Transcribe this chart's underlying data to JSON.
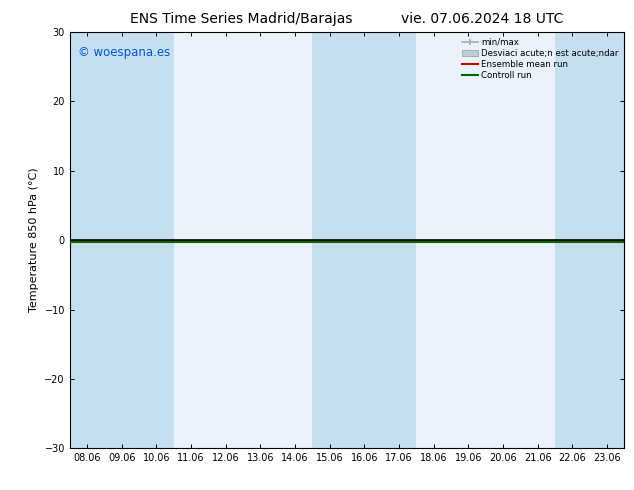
{
  "title": "ENS Time Series Madrid/Barajas",
  "title_right": "vie. 07.06.2024 18 UTC",
  "ylabel": "Temperature 850 hPa (°C)",
  "ylim": [
    -30,
    30
  ],
  "yticks": [
    -30,
    -20,
    -10,
    0,
    10,
    20,
    30
  ],
  "x_labels": [
    "08.06",
    "09.06",
    "10.06",
    "11.06",
    "12.06",
    "13.06",
    "14.06",
    "15.06",
    "16.06",
    "17.06",
    "18.06",
    "19.06",
    "20.06",
    "21.06",
    "22.06",
    "23.06"
  ],
  "shaded_indices": [
    0,
    1,
    2,
    7,
    8,
    9,
    14,
    15
  ],
  "background_color": "#ffffff",
  "plot_bg_color": "#eaf3fb",
  "band_color": "#c5dff0",
  "watermark": "© woespana.es",
  "watermark_color": "#0055cc",
  "legend_minmax_label": "min/max",
  "legend_std_label": "Desviaci acute;n est acute;ndar",
  "legend_mean_label": "Ensemble mean run",
  "legend_ctrl_label": "Controll run",
  "legend_minmax_color": "#aaaaaa",
  "legend_std_color": "#c0ccd8",
  "legend_mean_color": "#cc0000",
  "legend_ctrl_color": "#006600",
  "zero_line_color": "#000000",
  "ctrl_line_color": "#006600",
  "mean_line_color": "#cc0000",
  "title_fontsize": 10,
  "axis_fontsize": 8,
  "tick_fontsize": 7,
  "watermark_fontsize": 8.5
}
